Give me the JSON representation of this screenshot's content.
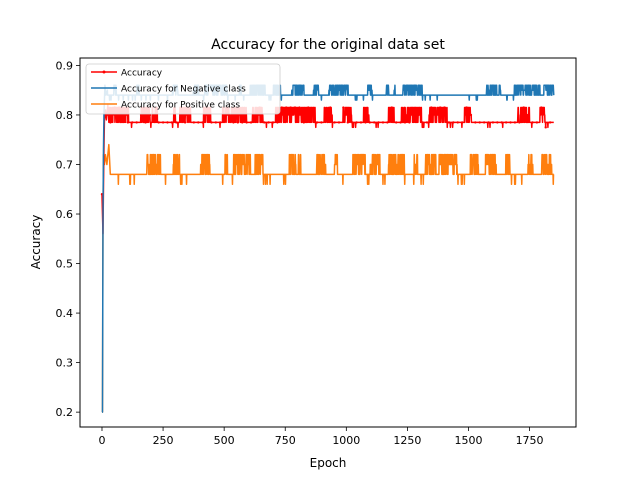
{
  "chart_data": {
    "type": "line",
    "title": "Accuracy for the original data set",
    "xlabel": "Epoch",
    "ylabel": "Accuracy",
    "xlim": [
      -90,
      1940
    ],
    "ylim": [
      0.17,
      0.915
    ],
    "xticks": [
      0,
      250,
      500,
      750,
      1000,
      1250,
      1500,
      1750
    ],
    "xtick_labels": [
      "0",
      "250",
      "500",
      "750",
      "1000",
      "1250",
      "1500",
      "1750"
    ],
    "yticks": [
      0.2,
      0.3,
      0.4,
      0.5,
      0.6,
      0.7,
      0.8,
      0.9
    ],
    "ytick_labels": [
      "0.2",
      "0.3",
      "0.4",
      "0.5",
      "0.6",
      "0.7",
      "0.8",
      "0.9"
    ],
    "grid": false,
    "legend_position": "top-left",
    "n_epochs": 1850,
    "series": [
      {
        "name": "Accuracy",
        "color": "#ff0000",
        "marker": "dot",
        "initial": [
          [
            0,
            0.64
          ],
          [
            2,
            0.6
          ],
          [
            4,
            0.56
          ],
          [
            6,
            0.65
          ],
          [
            8,
            0.73
          ],
          [
            10,
            0.79
          ],
          [
            14,
            0.81
          ],
          [
            18,
            0.79
          ],
          [
            24,
            0.82
          ]
        ],
        "baseline": 0.785,
        "spike_levels": [
          0.8,
          0.815
        ],
        "dip_level": 0.775
      },
      {
        "name": "Accuracy for Negative class",
        "color": "#1f77b4",
        "marker": "none",
        "initial": [
          [
            0,
            0.2
          ],
          [
            2,
            0.2
          ],
          [
            4,
            0.58
          ],
          [
            6,
            0.73
          ],
          [
            8,
            0.8
          ],
          [
            12,
            0.86
          ],
          [
            16,
            0.84
          ],
          [
            22,
            0.85
          ]
        ],
        "baseline": 0.84,
        "spike_levels": [
          0.85,
          0.86
        ],
        "dip_level": 0.83
      },
      {
        "name": "Accuracy for Positive class",
        "color": "#ff7f0e",
        "marker": "none",
        "initial": [
          [
            0,
            0.2
          ],
          [
            2,
            0.2
          ],
          [
            4,
            0.6
          ],
          [
            6,
            0.72
          ],
          [
            10,
            0.7
          ],
          [
            14,
            0.72
          ],
          [
            20,
            0.7
          ],
          [
            28,
            0.74
          ],
          [
            34,
            0.68
          ]
        ],
        "baseline": 0.68,
        "spike_levels": [
          0.7,
          0.72
        ],
        "dip_level": 0.66
      }
    ]
  }
}
